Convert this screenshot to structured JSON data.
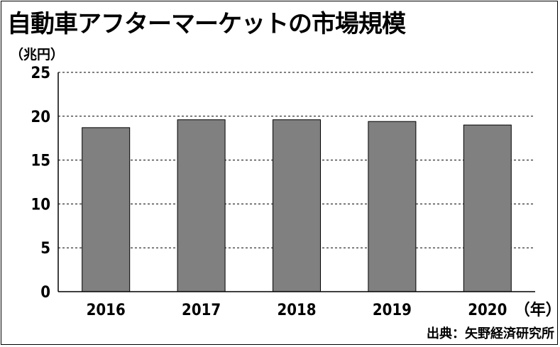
{
  "title": "自動車アフターマーケットの市場規模",
  "unit_label": "（兆円）",
  "source": "出典：矢野経済研究所",
  "chart_data": {
    "type": "bar",
    "title": "自動車アフターマーケットの市場規模",
    "ylabel": "（兆円）",
    "xlabel": "（年）",
    "categories": [
      "2016",
      "2017",
      "2018",
      "2019",
      "2020"
    ],
    "values": [
      18.7,
      19.6,
      19.6,
      19.4,
      19.0
    ],
    "ylim": [
      0,
      25
    ],
    "yticks": [
      0,
      5,
      10,
      15,
      20,
      25
    ],
    "grid": true,
    "bar_color": "#808080",
    "grid_color": "#000000"
  }
}
